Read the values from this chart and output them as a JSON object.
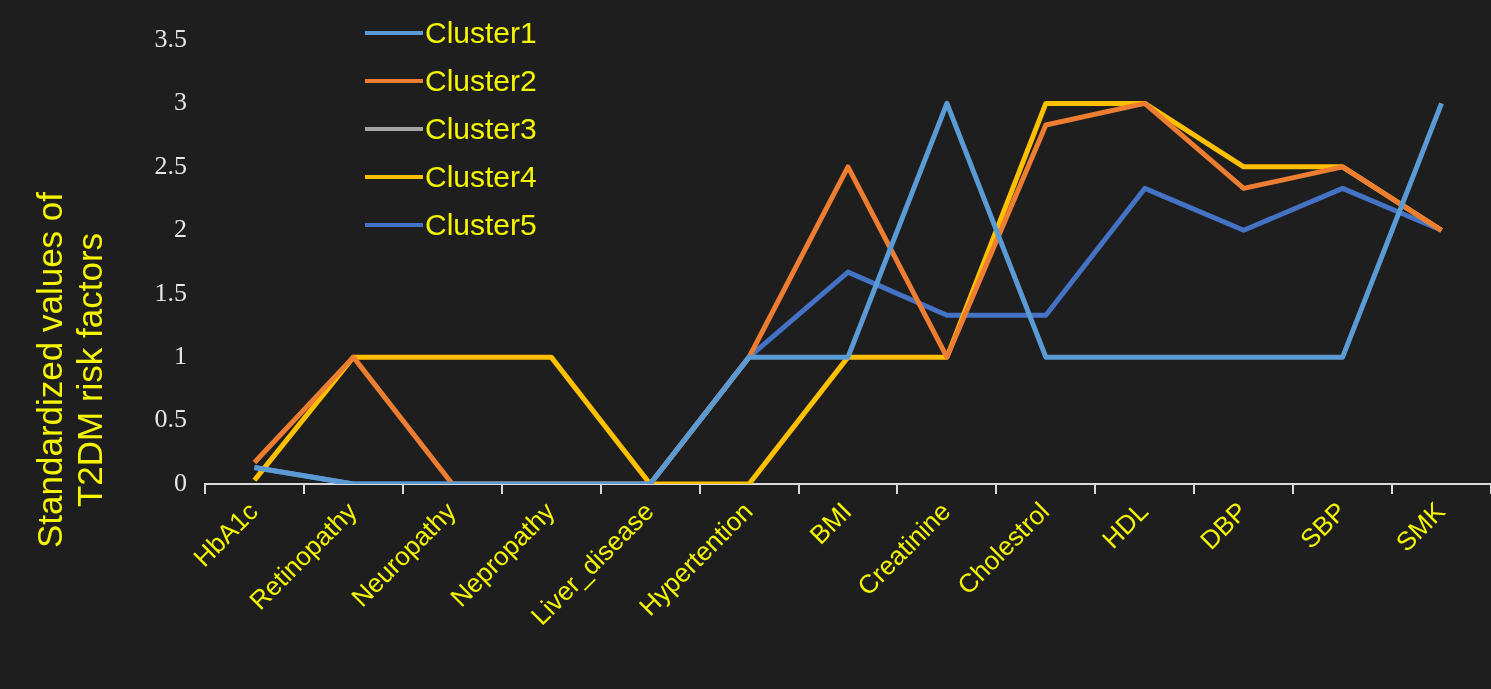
{
  "chart_data": {
    "type": "line",
    "ylabel": "Standardized values of T2DM risk factors",
    "categories": [
      "HbA1c",
      "Retinopathy",
      "Neuropathy",
      "Nepropathy",
      "Liver_disease",
      "Hypertention",
      "BMI",
      "Creatinine",
      "Cholestrol",
      "HDL",
      "DBP",
      "SBP",
      "SMK"
    ],
    "series": [
      {
        "name": "Cluster1",
        "color": "#5b9bd5",
        "values": [
          0.13,
          0,
          0,
          0,
          0,
          1,
          1,
          3,
          1,
          1,
          1,
          1,
          3
        ]
      },
      {
        "name": "Cluster2",
        "color": "#ed7d31",
        "values": [
          0.17,
          1,
          0,
          0,
          0,
          1,
          2.5,
          1,
          2.83,
          3,
          2.33,
          2.5,
          2
        ]
      },
      {
        "name": "Cluster3",
        "color": "#a5a5a5",
        "values": [
          null,
          null,
          null,
          null,
          null,
          null,
          null,
          null,
          null,
          null,
          null,
          null,
          null
        ]
      },
      {
        "name": "Cluster4",
        "color": "#ffc000",
        "values": [
          0.03,
          1,
          1,
          1,
          0,
          0,
          1,
          1,
          3,
          3,
          2.5,
          2.5,
          2
        ]
      },
      {
        "name": "Cluster5",
        "color": "#4472c4",
        "values": [
          0.13,
          0,
          0,
          0,
          0,
          1,
          1.67,
          1.33,
          1.33,
          2.33,
          2,
          2.33,
          2
        ]
      }
    ],
    "ylim": [
      0,
      3.5
    ],
    "yticks": [
      0,
      0.5,
      1,
      1.5,
      2,
      2.5,
      3,
      3.5
    ],
    "grid": false,
    "legend": "top left",
    "marker": "none",
    "line_style": "solid"
  }
}
